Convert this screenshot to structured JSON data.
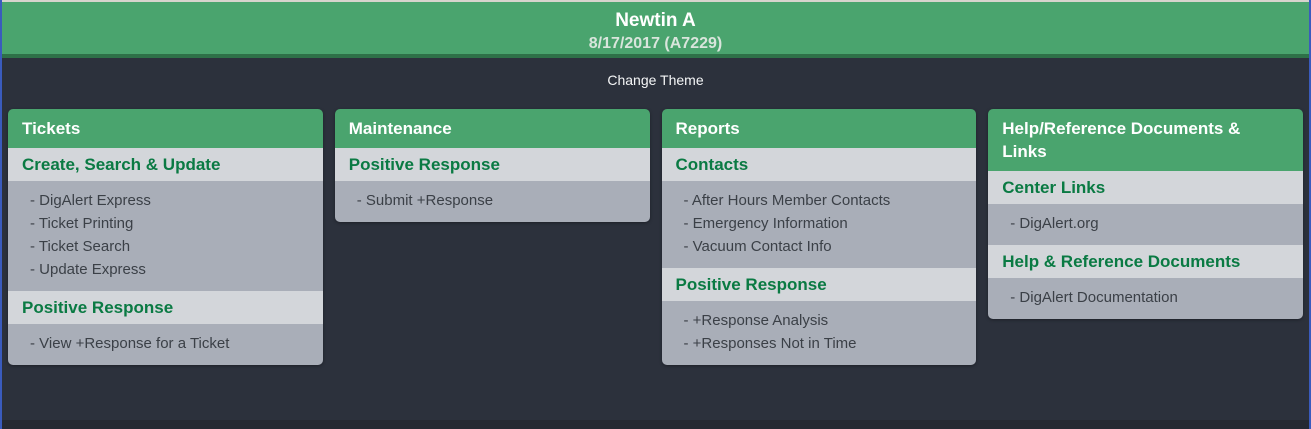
{
  "theme": {
    "green": "#4aa46e",
    "green_dark_border": "#2e7148",
    "background_dark": "#2c313c",
    "frame_border_blue": "#3a5bbd",
    "top_line": "#d7d4cd",
    "section_title_bg": "#d3d6da",
    "section_title_color": "#0a7a43",
    "items_bg": "#a9aeb8",
    "item_text_color": "#3b4047",
    "bottom_strip": "#252932"
  },
  "header": {
    "title": "Newtin A",
    "subtitle": "8/17/2017 (A7229)"
  },
  "toolbar": {
    "change_theme_label": "Change Theme"
  },
  "list_marker": "- ",
  "cards": [
    {
      "title": "Tickets",
      "sections": [
        {
          "title": "Create, Search & Update",
          "items": [
            "DigAlert Express",
            "Ticket Printing",
            "Ticket Search",
            "Update Express"
          ]
        },
        {
          "title": "Positive Response",
          "items": [
            "View +Response for a Ticket"
          ]
        }
      ]
    },
    {
      "title": "Maintenance",
      "sections": [
        {
          "title": "Positive Response",
          "items": [
            "Submit +Response"
          ]
        }
      ]
    },
    {
      "title": "Reports",
      "sections": [
        {
          "title": "Contacts",
          "items": [
            "After Hours Member Contacts",
            "Emergency Information",
            "Vacuum Contact Info"
          ]
        },
        {
          "title": "Positive Response",
          "items": [
            "+Response Analysis",
            "+Responses Not in Time"
          ]
        }
      ]
    },
    {
      "title": "Help/Reference Documents & Links",
      "sections": [
        {
          "title": "Center Links",
          "items": [
            "DigAlert.org"
          ]
        },
        {
          "title": "Help & Reference Documents",
          "items": [
            "DigAlert Documentation"
          ]
        }
      ]
    }
  ]
}
